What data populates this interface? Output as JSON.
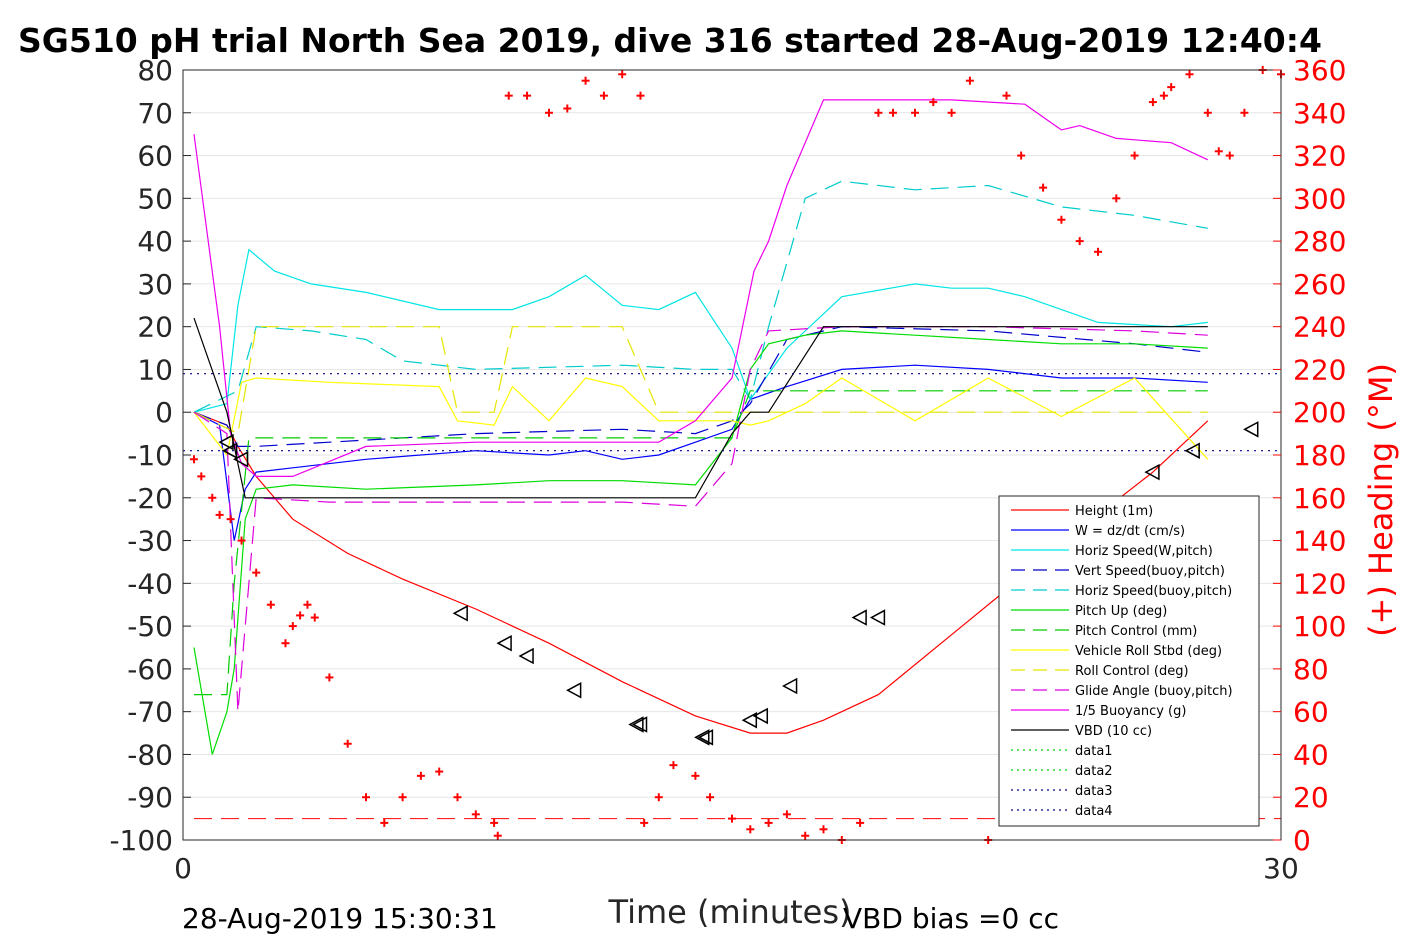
{
  "chart_data": {
    "type": "line",
    "title": "SG510 pH trial North Sea 2019, dive 316 started 28-Aug-2019 12:40:4",
    "xlabel": "Time (minutes)",
    "ylabel_right": "(+) Heading (°M)",
    "xlim": [
      0,
      30
    ],
    "ylim": [
      -100,
      80
    ],
    "ylim_right": [
      0,
      360
    ],
    "x_ticks": [
      "0",
      "30"
    ],
    "y_ticks": [
      "80",
      "70",
      "60",
      "50",
      "40",
      "30",
      "20",
      "10",
      "0",
      "-10",
      "-20",
      "-30",
      "-40",
      "-50",
      "-60",
      "-70",
      "-80",
      "-90",
      "-100"
    ],
    "y_ticks_right": [
      "360",
      "340",
      "320",
      "300",
      "280",
      "260",
      "240",
      "220",
      "200",
      "180",
      "160",
      "140",
      "120",
      "100",
      "80",
      "60",
      "40",
      "20",
      "0"
    ],
    "grid": true,
    "legend_position": "lower-right",
    "footer_left": "28-Aug-2019 15:30:31",
    "footer_right": "VBD bias =0 cc",
    "series": [
      {
        "name": "Height (1m)",
        "color": "#ff0000",
        "style": "solid",
        "x": [
          0.3,
          1.2,
          1.5,
          2.0,
          3.0,
          4.5,
          6.0,
          8.0,
          10.0,
          12.0,
          14.0,
          15.5,
          16.5,
          17.5,
          19.0,
          21.0,
          23.0,
          25.0,
          26.5,
          28.0
        ],
        "y": [
          0,
          -3,
          -8,
          -15,
          -25,
          -33,
          -39,
          -46,
          -54,
          -63,
          -71,
          -75,
          -75,
          -72,
          -66,
          -52,
          -38,
          -24,
          -14,
          -2
        ]
      },
      {
        "name": "W = dz/dt (cm/s)",
        "color": "#0000ff",
        "style": "solid",
        "x": [
          0.3,
          1.0,
          1.4,
          1.7,
          2.0,
          3.0,
          5.0,
          8.0,
          10.0,
          11.0,
          12.0,
          13.0,
          14.0,
          15.0,
          15.5,
          16.5,
          18.0,
          20.0,
          22.0,
          24.0,
          26.0,
          28.0
        ],
        "y": [
          0,
          -3,
          -30,
          -18,
          -14,
          -13,
          -11,
          -9,
          -10,
          -9,
          -11,
          -10,
          -7,
          -4,
          3,
          6,
          10,
          11,
          10,
          8,
          8,
          7
        ]
      },
      {
        "name": "Horiz Speed(W,pitch)",
        "color": "#00e5e5",
        "style": "solid",
        "x": [
          0.3,
          1.2,
          1.5,
          1.8,
          2.5,
          3.5,
          5.0,
          7.0,
          9.0,
          10.0,
          11.0,
          12.0,
          13.0,
          14.0,
          15.0,
          15.5,
          16.5,
          18.0,
          20.0,
          21.0,
          22.0,
          23.0,
          25.0,
          27.0,
          28.0
        ],
        "y": [
          0,
          2,
          25,
          38,
          33,
          30,
          28,
          24,
          24,
          27,
          32,
          25,
          24,
          28,
          15,
          3,
          15,
          27,
          30,
          29,
          29,
          27,
          21,
          20,
          21
        ]
      },
      {
        "name": "Vert Speed(buoy,pitch)",
        "color": "#0000cc",
        "style": "dashed",
        "x": [
          0.3,
          1.2,
          1.5,
          2.0,
          4.0,
          8.0,
          12.0,
          14.0,
          15.0,
          15.5,
          16.5,
          18.0,
          22.0,
          26.0,
          28.0
        ],
        "y": [
          0,
          -3,
          -8,
          -8,
          -7,
          -5,
          -4,
          -5,
          -2,
          2,
          17,
          20,
          19,
          16,
          14
        ]
      },
      {
        "name": "Horiz Speed(buoy,pitch)",
        "color": "#00cccc",
        "style": "dashed",
        "x": [
          0.3,
          1.5,
          2.0,
          3.5,
          5.0,
          6.0,
          8.0,
          12.0,
          14.0,
          15.0,
          15.5,
          16.0,
          17.0,
          18.0,
          20.0,
          22.0,
          24.0,
          26.0,
          28.0
        ],
        "y": [
          0,
          5,
          20,
          19,
          17,
          12,
          10,
          11,
          10,
          10,
          3,
          20,
          50,
          54,
          52,
          53,
          48,
          46,
          43
        ]
      },
      {
        "name": "Pitch Up (deg)",
        "color": "#00dd00",
        "style": "solid",
        "x": [
          0.3,
          0.8,
          1.2,
          1.4,
          1.7,
          2.0,
          3.0,
          5.0,
          8.0,
          10.0,
          12.0,
          14.0,
          15.0,
          15.5,
          16.0,
          17.0,
          18.0,
          20.0,
          22.0,
          24.0,
          26.0,
          28.0
        ],
        "y": [
          -55,
          -80,
          -70,
          -60,
          -25,
          -18,
          -17,
          -18,
          -17,
          -16,
          -16,
          -17,
          -6,
          10,
          16,
          18,
          19,
          18,
          17,
          16,
          16,
          15
        ]
      },
      {
        "name": "Pitch Control (mm)",
        "color": "#00cc00",
        "style": "dashed",
        "x": [
          0.3,
          1.2,
          1.4,
          1.8,
          5.0,
          10.0,
          14.0,
          15.0,
          15.5,
          16.0,
          20.0,
          25.0,
          28.0
        ],
        "y": [
          -66,
          -66,
          -40,
          -6,
          -6,
          -6,
          -6,
          -6,
          5,
          5,
          5,
          5,
          5
        ]
      },
      {
        "name": "Vehicle Roll Stbd (deg)",
        "color": "#ffff00",
        "style": "solid",
        "x": [
          0.3,
          1.2,
          1.6,
          2.0,
          4.0,
          7.0,
          7.5,
          8.5,
          9.0,
          10.0,
          11.0,
          12.0,
          13.0,
          14.0,
          15.0,
          15.5,
          16.0,
          17.0,
          18.0,
          20.0,
          22.0,
          24.0,
          26.0,
          28.0
        ],
        "y": [
          0,
          -10,
          7,
          8,
          7,
          6,
          -2,
          -3,
          6,
          -2,
          8,
          6,
          -2,
          -2,
          -2,
          -3,
          -2,
          2,
          8,
          -2,
          8,
          -1,
          8,
          -11
        ]
      },
      {
        "name": "Roll Control (deg)",
        "color": "#e5e500",
        "style": "dashed",
        "x": [
          0.3,
          1.5,
          2.0,
          7.0,
          7.5,
          8.5,
          9.0,
          12.0,
          13.0,
          14.0,
          15.0,
          16.0,
          18.0,
          20.0,
          24.0,
          26.0,
          28.0
        ],
        "y": [
          0,
          -5,
          20,
          20,
          0,
          0,
          20,
          20,
          0,
          0,
          0,
          0,
          0,
          0,
          0,
          0,
          0
        ]
      },
      {
        "name": "Glide Angle (buoy,pitch)",
        "color": "#dd00dd",
        "style": "dashed",
        "x": [
          0.3,
          1.2,
          1.5,
          2.0,
          4.0,
          8.0,
          12.0,
          14.0,
          15.0,
          15.5,
          16.0,
          18.0,
          22.0,
          26.0,
          28.0
        ],
        "y": [
          0,
          -5,
          -70,
          -20,
          -21,
          -21,
          -21,
          -22,
          -12,
          10,
          19,
          20,
          20,
          19,
          18
        ]
      },
      {
        "name": "1/5 Buoyancy (g)",
        "color": "#ee00ee",
        "style": "solid",
        "x": [
          0.3,
          1.0,
          1.3,
          1.6,
          2.0,
          3.0,
          5.0,
          8.0,
          12.0,
          13.0,
          14.0,
          15.0,
          15.6,
          16.0,
          16.5,
          17.5,
          19.0,
          21.0,
          23.0,
          24.0,
          24.5,
          25.5,
          27.0,
          28.0
        ],
        "y": [
          65,
          20,
          -5,
          -12,
          -15,
          -15,
          -8,
          -7,
          -7,
          -7,
          -2,
          8,
          33,
          40,
          53,
          73,
          73,
          73,
          72,
          66,
          67,
          64,
          63,
          59
        ]
      },
      {
        "name": "VBD (10 cc)",
        "color": "#000000",
        "style": "solid",
        "x": [
          0.3,
          1.2,
          1.7,
          2.0,
          5.0,
          10.0,
          13.0,
          14.0,
          15.0,
          15.5,
          16.0,
          17.5,
          20.0,
          25.0,
          28.0
        ],
        "y": [
          22,
          0,
          -20,
          -20,
          -20,
          -20,
          -20,
          -20,
          -5,
          0,
          0,
          20,
          20,
          20,
          20
        ]
      },
      {
        "name": "data1",
        "color": "#00cc00",
        "style": "dotted",
        "x": [],
        "y": []
      },
      {
        "name": "data2",
        "color": "#00cc00",
        "style": "dotted",
        "x": [],
        "y": []
      },
      {
        "name": "data3",
        "color": "#00008b",
        "style": "dotted",
        "x": [
          0,
          30
        ],
        "y": [
          9,
          9
        ]
      },
      {
        "name": "data4",
        "color": "#00008b",
        "style": "dotted",
        "x": [
          0,
          30
        ],
        "y": [
          -9,
          -9
        ]
      }
    ],
    "depth_markers": {
      "x": [
        1.2,
        1.3,
        1.6,
        7.6,
        8.8,
        9.4,
        10.7,
        12.4,
        12.5,
        14.2,
        14.3,
        15.5,
        15.8,
        16.6,
        18.5,
        19.0,
        25.0,
        25.4,
        26.5,
        27.6,
        29.2
      ],
      "y": [
        -7,
        -9,
        -11,
        -47,
        -54,
        -57,
        -65,
        -73,
        -73,
        -76,
        -76,
        -72,
        -71,
        -64,
        -48,
        -48,
        -26,
        -26,
        -14,
        -9,
        -4
      ]
    },
    "heading_points": {
      "x": [
        0.3,
        0.5,
        0.8,
        1.0,
        1.3,
        1.6,
        2.0,
        2.4,
        2.8,
        3.0,
        3.2,
        3.4,
        3.6,
        4.0,
        4.5,
        5.0,
        5.5,
        6.0,
        6.5,
        7.0,
        7.5,
        8.0,
        8.5,
        8.6,
        8.9,
        9.4,
        10.0,
        10.5,
        11.0,
        11.5,
        12.0,
        12.5,
        12.6,
        13.0,
        13.4,
        14.0,
        14.4,
        15.0,
        15.5,
        16.0,
        16.5,
        17.0,
        17.5,
        18.0,
        18.5,
        19.0,
        19.4,
        20.0,
        20.5,
        21.0,
        21.5,
        22.0,
        22.5,
        22.9,
        23.5,
        24.0,
        24.5,
        25.0,
        25.5,
        26.0,
        26.5,
        26.8,
        27.0,
        27.5,
        28.0,
        28.3,
        28.6,
        29.0,
        29.5,
        30.0
      ],
      "y": [
        178,
        170,
        160,
        152,
        150,
        140,
        125,
        110,
        92,
        100,
        105,
        110,
        104,
        76,
        45,
        20,
        8,
        20,
        30,
        32,
        20,
        12,
        8,
        2,
        348,
        348,
        340,
        342,
        355,
        348,
        358,
        348,
        8,
        20,
        35,
        30,
        20,
        10,
        5,
        8,
        12,
        2,
        5,
        0,
        8,
        340,
        340,
        340,
        345,
        340,
        355,
        0,
        348,
        320,
        305,
        290,
        280,
        275,
        300,
        320,
        345,
        348,
        352,
        358,
        340,
        322,
        320,
        340,
        360,
        358
      ]
    }
  }
}
